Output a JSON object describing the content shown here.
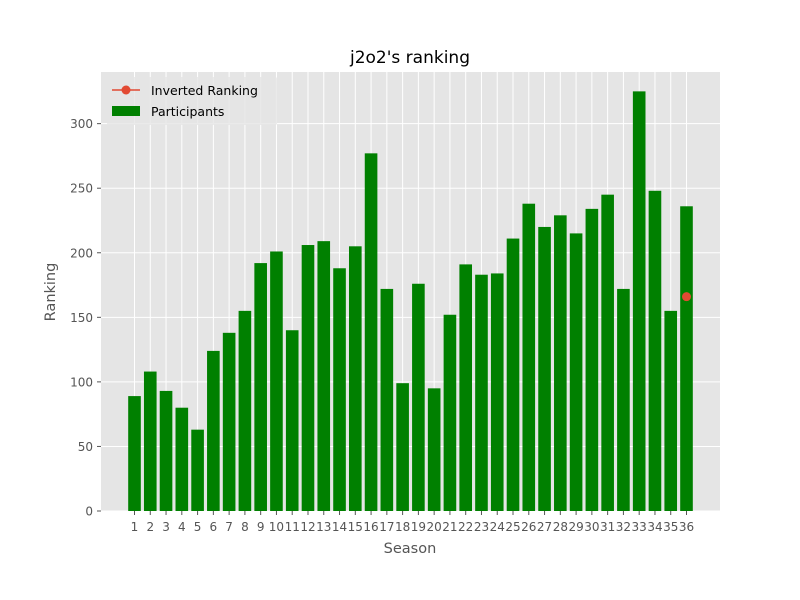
{
  "chart_data": {
    "type": "bar",
    "title": "j2o2's ranking",
    "xlabel": "Season",
    "ylabel": "Ranking",
    "ylim": [
      0,
      340
    ],
    "yticks": [
      0,
      50,
      100,
      150,
      200,
      250,
      300
    ],
    "grid": true,
    "legend_position": "top-left",
    "categories": [
      "1",
      "2",
      "3",
      "4",
      "5",
      "6",
      "7",
      "8",
      "9",
      "10",
      "11",
      "12",
      "13",
      "14",
      "15",
      "16",
      "17",
      "18",
      "19",
      "20",
      "21",
      "22",
      "23",
      "24",
      "25",
      "26",
      "27",
      "28",
      "29",
      "30",
      "31",
      "32",
      "33",
      "34",
      "35",
      "36"
    ],
    "series": [
      {
        "name": "Participants",
        "type": "bar",
        "color": "#008000",
        "values": [
          89,
          108,
          93,
          80,
          63,
          124,
          138,
          155,
          192,
          201,
          140,
          206,
          209,
          188,
          205,
          277,
          172,
          99,
          176,
          95,
          152,
          191,
          183,
          184,
          211,
          238,
          220,
          229,
          215,
          234,
          245,
          172,
          325,
          248,
          155,
          236
        ]
      },
      {
        "name": "Inverted Ranking",
        "type": "line",
        "color": "#E24A33",
        "points": [
          {
            "x": "36",
            "y": 166
          }
        ]
      }
    ]
  }
}
